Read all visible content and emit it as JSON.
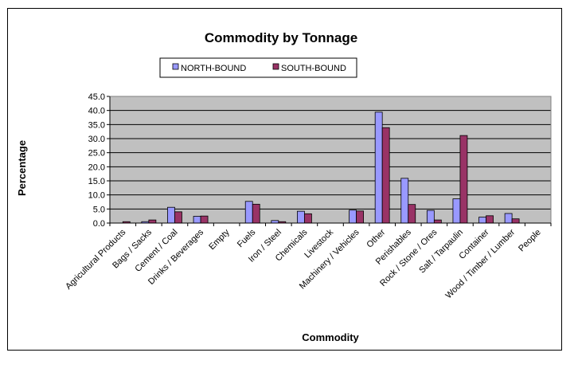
{
  "chart_data": {
    "type": "bar",
    "title": "Commodity by Tonnage",
    "xlabel": "Commodity",
    "ylabel": "Percentage",
    "ylim": [
      0,
      45
    ],
    "ytick_step": 5,
    "ytick_labels": [
      "0.0",
      "5.0",
      "10.0",
      "15.0",
      "20.0",
      "25.0",
      "30.0",
      "35.0",
      "40.0",
      "45.0"
    ],
    "grid": true,
    "legend_position": "top-center",
    "plot_background": "#c0c0c0",
    "categories": [
      "Agricultural Products",
      "Bags / Sacks",
      "Cement / Coal",
      "Drinks / Beverages",
      "Empty",
      "Fuels",
      "Iron / Steel",
      "Chemicals",
      "Livestock",
      "Machinery / Vehicles",
      "Other",
      "Perishables",
      "Rock / Stone / Ores",
      "Salt / Tarpaulin",
      "Container",
      "Wood / Timber / Lumber",
      "People"
    ],
    "series": [
      {
        "name": "NORTH-BOUND",
        "color": "#9999ff",
        "values": [
          0,
          0.5,
          5.6,
          2.4,
          0,
          7.7,
          0.9,
          4.2,
          0,
          4.6,
          39.4,
          15.9,
          4.5,
          8.6,
          2.1,
          3.4,
          0
        ]
      },
      {
        "name": "SOUTH-BOUND",
        "color": "#993366",
        "values": [
          0.5,
          1.1,
          4.0,
          2.5,
          0,
          6.7,
          0.5,
          3.3,
          0,
          4.3,
          33.9,
          6.6,
          1.1,
          31.1,
          2.6,
          1.5,
          0
        ]
      }
    ]
  }
}
